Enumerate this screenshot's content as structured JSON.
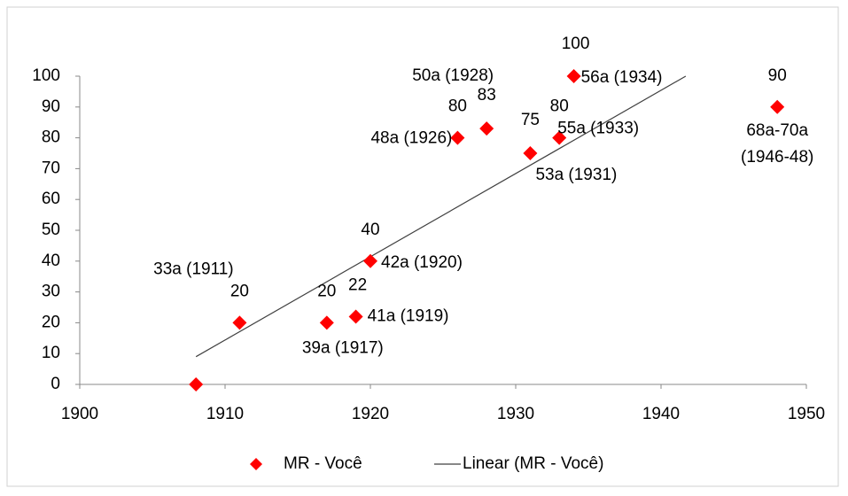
{
  "chart_data": {
    "type": "scatter",
    "x": [
      1908,
      1911,
      1917,
      1919,
      1920,
      1926,
      1928,
      1931,
      1933,
      1934,
      1948
    ],
    "series": [
      {
        "name": "MR - Você",
        "color": "#ff0000",
        "values": [
          0,
          20,
          20,
          22,
          40,
          80,
          83,
          75,
          80,
          100,
          90
        ],
        "value_labels": [
          null,
          "20",
          "20",
          "22",
          "40",
          "80",
          "83",
          "75",
          "80",
          "100",
          "90"
        ],
        "point_labels": [
          [],
          [
            "33a (1911)"
          ],
          [
            "39a (1917)"
          ],
          [
            "41a (1919)"
          ],
          [
            "42a (1920)"
          ],
          [
            "48a (1926)"
          ],
          [
            "50a (1928)"
          ],
          [
            "53a (1931)"
          ],
          [
            "55a (1933)"
          ],
          [
            "56a (1934)"
          ],
          [
            "68a-70a",
            "(1946-48)"
          ]
        ]
      }
    ],
    "trendline": {
      "name": "Linear (MR - Você)",
      "color": "#404040",
      "x": [
        1908,
        1941.7
      ],
      "values": [
        9,
        100
      ]
    },
    "xlim": [
      1900,
      1950
    ],
    "xticks": [
      1900,
      1910,
      1920,
      1930,
      1940,
      1950
    ],
    "ylim": [
      0,
      100
    ],
    "yticks": [
      0,
      10,
      20,
      30,
      40,
      50,
      60,
      70,
      80,
      90,
      100
    ],
    "grid": false,
    "legend": "bottom"
  }
}
